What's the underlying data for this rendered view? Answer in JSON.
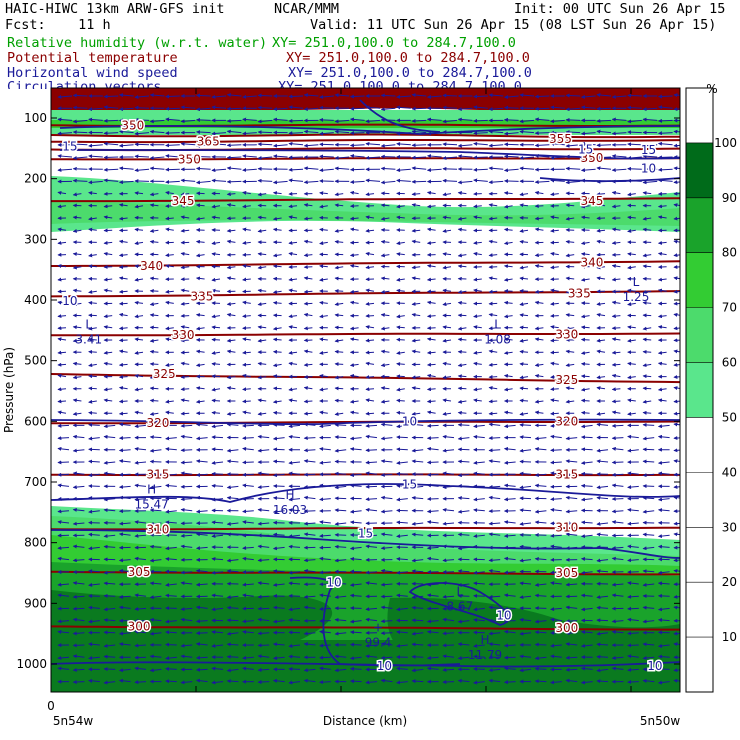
{
  "header": {
    "model": "HAIC-HIWC 13km ARW-GFS init",
    "center": "NCAR/MMM",
    "init": "Init: 00 UTC Sun 26 Apr 15",
    "fcst": "Fcst:    11 h",
    "valid": "Valid: 11 UTC Sun 26 Apr 15 (08 LST Sun 26 Apr 15)",
    "fields": [
      {
        "name": "Relative humidity (w.r.t. water)",
        "xy": "XY= 251.0,100.0 to 284.7,100.0",
        "color": "#00a000"
      },
      {
        "name": "Potential temperature",
        "xy": "XY= 251.0,100.0 to 284.7,100.0",
        "color": "#8b0000"
      },
      {
        "name": "Horizontal wind speed",
        "xy": "XY= 251.0,100.0 to 284.7,100.0",
        "color": "#1a1a99"
      },
      {
        "name": "Circulation vectors",
        "xy": "XY= 251.0,100.0 to 284.7,100.0",
        "color": "#1a1a99"
      }
    ]
  },
  "chart_data": {
    "type": "cross-section",
    "ylabel": "Pressure (hPa)",
    "xlabel": "Distance (km)",
    "y_ticks": [
      100,
      200,
      300,
      400,
      500,
      600,
      700,
      800,
      900,
      1000
    ],
    "x_start_label": "0",
    "x_left_label": "5n54w",
    "x_right_label": "5n50w",
    "colorbar": {
      "unit": "%",
      "ticks": [
        10,
        20,
        30,
        40,
        50,
        60,
        70,
        80,
        90,
        100
      ],
      "bands": [
        {
          "from": 50,
          "to": 60,
          "color": "#5ae68c"
        },
        {
          "from": 60,
          "to": 70,
          "color": "#4cdb6c"
        },
        {
          "from": 70,
          "to": 80,
          "color": "#33cc33"
        },
        {
          "from": 80,
          "to": 90,
          "color": "#1aa32b"
        },
        {
          "from": 90,
          "to": 100,
          "color": "#0a7a1f"
        },
        {
          "from": 100,
          "to": 110,
          "color": "#8b0000"
        }
      ]
    },
    "theta_labels": [
      {
        "v": "350",
        "x": 0.13,
        "p": 112
      },
      {
        "v": "365",
        "x": 0.25,
        "p": 139
      },
      {
        "v": "355",
        "x": 0.81,
        "p": 135
      },
      {
        "v": "350",
        "x": 0.22,
        "p": 168
      },
      {
        "v": "350",
        "x": 0.86,
        "p": 166
      },
      {
        "v": "345",
        "x": 0.21,
        "p": 237
      },
      {
        "v": "345",
        "x": 0.86,
        "p": 237
      },
      {
        "v": "340",
        "x": 0.16,
        "p": 344
      },
      {
        "v": "340",
        "x": 0.86,
        "p": 338
      },
      {
        "v": "335",
        "x": 0.24,
        "p": 394
      },
      {
        "v": "335",
        "x": 0.84,
        "p": 389
      },
      {
        "v": "330",
        "x": 0.21,
        "p": 458
      },
      {
        "v": "330",
        "x": 0.82,
        "p": 457
      },
      {
        "v": "325",
        "x": 0.18,
        "p": 522
      },
      {
        "v": "325",
        "x": 0.82,
        "p": 532
      },
      {
        "v": "320",
        "x": 0.17,
        "p": 603
      },
      {
        "v": "320",
        "x": 0.82,
        "p": 600
      },
      {
        "v": "315",
        "x": 0.17,
        "p": 688
      },
      {
        "v": "315",
        "x": 0.82,
        "p": 688
      },
      {
        "v": "310",
        "x": 0.17,
        "p": 778
      },
      {
        "v": "310",
        "x": 0.82,
        "p": 775
      },
      {
        "v": "305",
        "x": 0.14,
        "p": 848
      },
      {
        "v": "305",
        "x": 0.82,
        "p": 850
      },
      {
        "v": "300",
        "x": 0.14,
        "p": 938
      },
      {
        "v": "300",
        "x": 0.82,
        "p": 941
      }
    ],
    "wind_labels": [
      {
        "v": "15",
        "x": 0.03,
        "p": 147
      },
      {
        "v": "15",
        "x": 0.85,
        "p": 152
      },
      {
        "v": "15",
        "x": 0.95,
        "p": 153
      },
      {
        "v": "10",
        "x": 0.95,
        "p": 183
      },
      {
        "v": "10",
        "x": 0.03,
        "p": 402
      },
      {
        "v": "10",
        "x": 0.57,
        "p": 600
      },
      {
        "v": "15",
        "x": 0.57,
        "p": 704
      },
      {
        "v": "15",
        "x": 0.5,
        "p": 785
      },
      {
        "v": "10",
        "x": 0.45,
        "p": 866
      },
      {
        "v": "10",
        "x": 0.72,
        "p": 920
      },
      {
        "v": "10",
        "x": 0.53,
        "p": 1003
      },
      {
        "v": "10",
        "x": 0.96,
        "p": 1003
      }
    ],
    "extrema": [
      {
        "type": "L",
        "value": "3.41",
        "x": 0.06,
        "p": 455
      },
      {
        "type": "L",
        "value": "1.08",
        "x": 0.71,
        "p": 455
      },
      {
        "type": "L",
        "value": "1.25",
        "x": 0.93,
        "p": 385
      },
      {
        "type": "H",
        "value": "15.47",
        "x": 0.16,
        "p": 727
      },
      {
        "type": "H",
        "value": "16.03",
        "x": 0.38,
        "p": 736
      },
      {
        "type": "L",
        "value": "8.67",
        "x": 0.65,
        "p": 895
      },
      {
        "type": "+",
        "value": "99.4",
        "x": 0.52,
        "p": 955
      },
      {
        "type": "H",
        "value": "11.79",
        "x": 0.69,
        "p": 975
      }
    ]
  }
}
